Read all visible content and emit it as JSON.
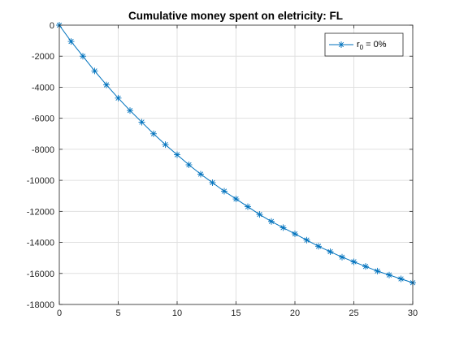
{
  "colors": {
    "series": "#0072bd",
    "axis": "#262626",
    "grid": "#e0e0e0",
    "background": "#ffffff"
  },
  "chart_data": {
    "type": "line",
    "title": "Cumulative money spent on eletricity: FL",
    "xlabel": "",
    "ylabel": "",
    "xlim": [
      0,
      30
    ],
    "ylim": [
      -18000,
      0
    ],
    "grid": true,
    "xticks": [
      0,
      5,
      10,
      15,
      20,
      25,
      30
    ],
    "yticks": [
      0,
      -2000,
      -4000,
      -6000,
      -8000,
      -10000,
      -12000,
      -14000,
      -16000,
      -18000
    ],
    "legend": {
      "placement": "top-right",
      "entry_main": "r",
      "entry_sub": "0",
      "entry_rest": " = 0%"
    },
    "series": [
      {
        "marker": "asterisk",
        "x": [
          0,
          1,
          2,
          3,
          4,
          5,
          6,
          7,
          8,
          9,
          10,
          11,
          12,
          13,
          14,
          15,
          16,
          17,
          18,
          19,
          20,
          21,
          22,
          23,
          24,
          25,
          26,
          27,
          28,
          29,
          30
        ],
        "y": [
          0,
          -1050,
          -2000,
          -2950,
          -3850,
          -4700,
          -5500,
          -6250,
          -7000,
          -7700,
          -8350,
          -9000,
          -9600,
          -10150,
          -10700,
          -11200,
          -11700,
          -12200,
          -12650,
          -13050,
          -13450,
          -13850,
          -14250,
          -14600,
          -14950,
          -15250,
          -15550,
          -15850,
          -16100,
          -16350,
          -16600
        ]
      }
    ]
  }
}
